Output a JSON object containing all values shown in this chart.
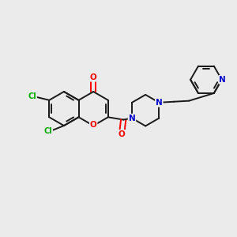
{
  "bg_color": "#ebebeb",
  "bond_color": "#1a1a1a",
  "bond_lw": 1.4,
  "atom_colors": {
    "O": "#ff0000",
    "N": "#0000cc",
    "Cl": "#00aa00",
    "C": "#1a1a1a"
  },
  "fs": 7.5,
  "fs_cl": 7.0,
  "xlim": [
    -2.6,
    2.6
  ],
  "ylim": [
    -1.8,
    1.8
  ]
}
